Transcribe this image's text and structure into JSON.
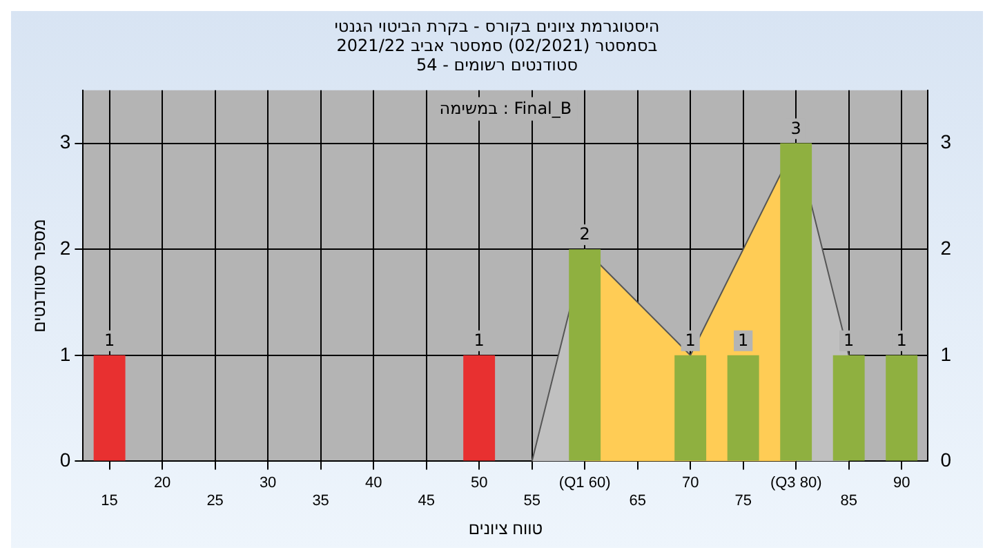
{
  "chart_data": {
    "type": "bar",
    "title": "היסטוגרמת ציונים בקורס - בקרת הביטוי הגנטי",
    "subtitle": "בסמסטר  (02/2021)  סמסטר אביב 2021/22\nסטודנטים רשומים - 54",
    "xlabel": "טווח ציונים",
    "ylabel": "מספר סטודנטים",
    "annotations": [
      "במשימה : Final_B"
    ],
    "categories": [
      "15",
      "20",
      "25",
      "30",
      "35",
      "40",
      "45",
      "50",
      "55",
      "(Q1 60)",
      "65",
      "70",
      "75",
      "(Q3 80)",
      "85",
      "90"
    ],
    "series": [
      {
        "type": "area",
        "color": "#c0c0c0",
        "values": [
          null,
          null,
          null,
          null,
          null,
          null,
          null,
          null,
          0,
          2,
          null,
          null,
          null,
          3,
          1,
          null
        ]
      },
      {
        "type": "area",
        "color": "#ffcc55",
        "values": [
          null,
          null,
          null,
          null,
          null,
          null,
          null,
          null,
          null,
          2,
          null,
          1,
          null,
          3,
          null,
          null
        ]
      },
      {
        "colors": [
          "#e83030",
          "#8fb040",
          "#8fb040",
          "#8fb040",
          "#8fb040",
          "#8fb040",
          "#8fb040",
          "#e83030",
          "#8fb040",
          "#8fb040",
          "#8fb040",
          "#8fb040",
          "#8fb040",
          "#8fb040",
          "#8fb040",
          "#8fb040"
        ],
        "values": [
          1,
          0,
          0,
          0,
          0,
          0,
          0,
          1,
          0,
          2,
          0,
          1,
          1,
          3,
          1,
          1
        ],
        "value_labels": [
          "1",
          null,
          null,
          null,
          null,
          null,
          null,
          "1",
          null,
          "2",
          null,
          "1",
          "1",
          "3",
          "1",
          "1"
        ]
      }
    ],
    "ylim": [
      0,
      3.5
    ],
    "yticks": [
      0,
      1,
      2,
      3
    ],
    "y2lim": [
      0,
      3.5
    ],
    "y2ticks": [
      0,
      1,
      2,
      3
    ],
    "grid": true,
    "legend": false
  }
}
